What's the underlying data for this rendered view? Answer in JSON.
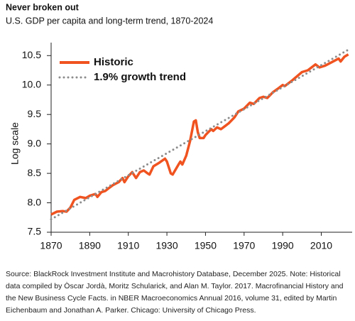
{
  "chart_data": {
    "type": "line",
    "title": "Never broken out",
    "subtitle": "U.S. GDP per capita and long-term trend, 1870-2024",
    "y_label": "Log scale",
    "source": "Source: BlackRock Investment Institute and Macrohistory Database, December 2025. Note: Historical data compiled by Òscar Jordà, Moritz Schularick, and Alan M. Taylor. 2017. Macrofinancial History and the New Business Cycle Facts. in NBER Macroeconomics Annual 2016, volume 31, edited by Martin Eichenbaum and Jonathan A. Parker. Chicago: University of Chicago Press.",
    "xlim": [
      1870,
      2026
    ],
    "xticks": [
      1870,
      1890,
      1910,
      1930,
      1950,
      1970,
      1990,
      2010
    ],
    "ylim": [
      7.5,
      10.6
    ],
    "yticks": [
      7.5,
      {
        "value": 8,
        "label": "8.0"
      },
      8.5,
      {
        "value": 9,
        "label": "9.0"
      },
      9.5,
      {
        "value": 10,
        "label": "10.0"
      },
      10.5
    ],
    "legend": "top-left",
    "series": [
      {
        "name": "Historic",
        "color": "#f0531f",
        "dash": "solid",
        "x": [
          1870,
          1873,
          1876,
          1878,
          1880,
          1882,
          1885,
          1888,
          1890,
          1893,
          1894,
          1896,
          1898,
          1900,
          1902,
          1905,
          1907,
          1908,
          1910,
          1912,
          1914,
          1916,
          1918,
          1920,
          1921,
          1923,
          1926,
          1929,
          1930,
          1932,
          1933,
          1936,
          1937,
          1938,
          1940,
          1942,
          1944,
          1945,
          1946,
          1947,
          1949,
          1950,
          1953,
          1954,
          1956,
          1958,
          1960,
          1962,
          1965,
          1967,
          1970,
          1973,
          1975,
          1978,
          1980,
          1982,
          1985,
          1988,
          1990,
          1991,
          1995,
          2000,
          2003,
          2007,
          2009,
          2012,
          2015,
          2019,
          2020,
          2022,
          2024
        ],
        "values": [
          7.8,
          7.85,
          7.86,
          7.85,
          7.92,
          8.05,
          8.1,
          8.08,
          8.12,
          8.15,
          8.1,
          8.18,
          8.2,
          8.25,
          8.3,
          8.35,
          8.42,
          8.35,
          8.45,
          8.52,
          8.42,
          8.52,
          8.55,
          8.5,
          8.48,
          8.62,
          8.68,
          8.75,
          8.7,
          8.5,
          8.48,
          8.65,
          8.7,
          8.65,
          8.8,
          9.05,
          9.38,
          9.4,
          9.2,
          9.1,
          9.1,
          9.15,
          9.25,
          9.22,
          9.28,
          9.25,
          9.3,
          9.35,
          9.45,
          9.55,
          9.6,
          9.7,
          9.68,
          9.78,
          9.8,
          9.78,
          9.88,
          9.95,
          10.0,
          9.98,
          10.08,
          10.22,
          10.25,
          10.35,
          10.3,
          10.33,
          10.38,
          10.45,
          10.4,
          10.48,
          10.52
        ]
      },
      {
        "name": "1.9% growth trend",
        "color": "#8c8c8c",
        "dash": "dotted",
        "x": [
          1870,
          2024
        ],
        "values": [
          7.72,
          10.6
        ]
      }
    ]
  }
}
